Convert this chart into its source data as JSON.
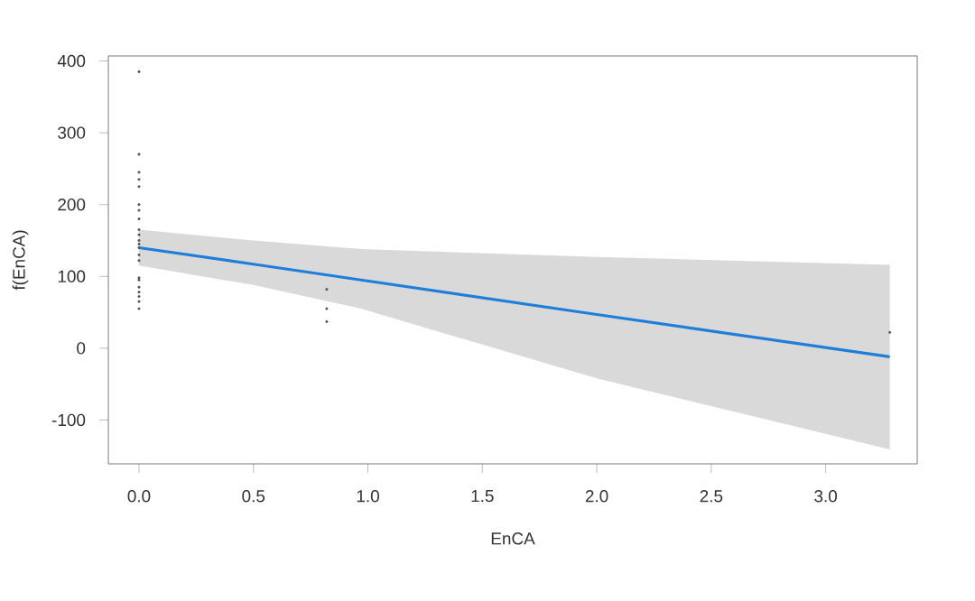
{
  "chart_data": {
    "type": "line",
    "xlabel": "EnCA",
    "ylabel": "f(EnCA)",
    "xlim": [
      -0.134,
      3.4
    ],
    "ylim": [
      -161,
      407
    ],
    "xticks": [
      {
        "value": 0,
        "label": "0.0"
      },
      0.5,
      {
        "value": 1,
        "label": "1.0"
      },
      1.5,
      {
        "value": 2,
        "label": "2.0"
      },
      2.5,
      {
        "value": 3,
        "label": "3.0"
      }
    ],
    "yticks": [
      -100,
      0,
      100,
      200,
      300,
      400
    ],
    "grid": false,
    "series": [
      {
        "marker": "none",
        "color": "#1f7fd8",
        "x": [
          0,
          0.5,
          0.97,
          2.0,
          3.28
        ],
        "values": [
          140,
          117,
          95,
          47,
          -12
        ],
        "lower": [
          115,
          88,
          55,
          -42,
          -141
        ],
        "upper": [
          165,
          150,
          138,
          127,
          116
        ]
      },
      {
        "type": "scatter",
        "marker": "circle",
        "color": "#555555",
        "x": [
          0,
          0,
          0,
          0,
          0,
          0,
          0,
          0,
          0,
          0,
          0,
          0,
          0,
          0,
          0,
          0,
          0,
          0,
          0,
          0,
          0,
          0,
          0.82,
          0.82,
          0.82,
          3.28
        ],
        "values": [
          385,
          270,
          245,
          235,
          225,
          200,
          192,
          180,
          165,
          158,
          150,
          145,
          140,
          130,
          122,
          98,
          95,
          85,
          78,
          72,
          65,
          55,
          82,
          55,
          37,
          22
        ]
      }
    ]
  }
}
